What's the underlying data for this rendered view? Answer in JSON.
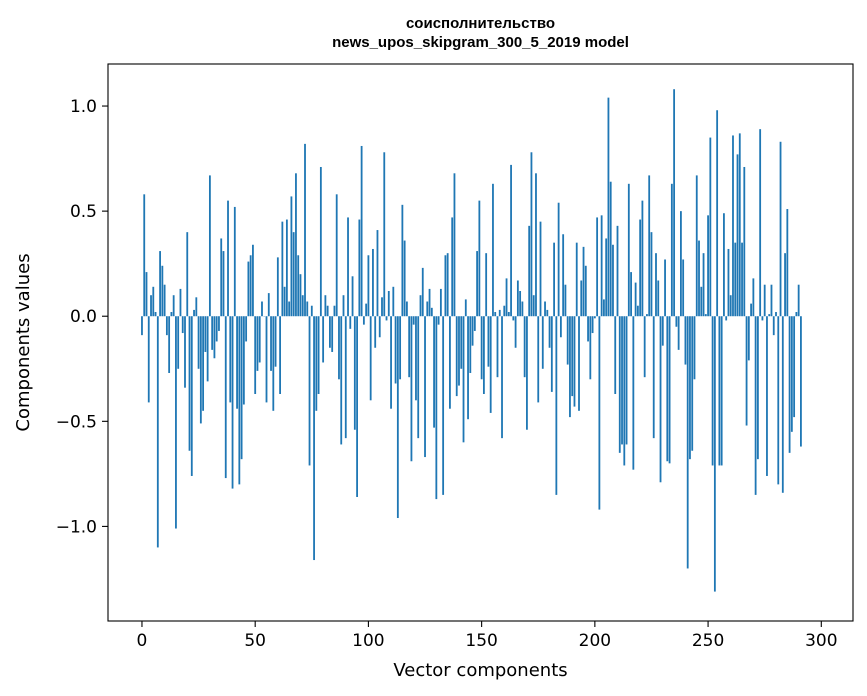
{
  "chart_data": {
    "type": "bar",
    "title": "соисполнительство\nnews_upos_skipgram_300_5_2019 model",
    "title_lines": [
      "соисполнительство",
      "news_upos_skipgram_300_5_2019 model"
    ],
    "xlabel": "Vector components",
    "ylabel": "Components values",
    "xlim": [
      -15,
      314
    ],
    "ylim": [
      -1.45,
      1.2
    ],
    "xticks": [
      0,
      50,
      100,
      150,
      200,
      250,
      300
    ],
    "xtick_labels": [
      "0",
      "50",
      "100",
      "150",
      "200",
      "250",
      "300"
    ],
    "yticks": [
      -1.0,
      -0.5,
      0.0,
      0.5,
      1.0
    ],
    "ytick_labels": [
      "−1.0",
      "−0.5",
      "0.0",
      "0.5",
      "1.0"
    ],
    "grid": false,
    "bar_color": "#1f77b4",
    "x_start": 0,
    "values": [
      -0.09,
      0.58,
      0.21,
      -0.41,
      0.1,
      0.14,
      0.02,
      -1.1,
      0.31,
      0.24,
      0.15,
      -0.09,
      -0.27,
      0.02,
      0.1,
      -1.01,
      -0.25,
      0.13,
      -0.08,
      -0.34,
      0.4,
      -0.64,
      -0.76,
      0.03,
      0.09,
      -0.25,
      -0.51,
      -0.45,
      -0.17,
      -0.31,
      0.67,
      -0.16,
      -0.2,
      -0.12,
      -0.07,
      0.37,
      0.31,
      -0.77,
      0.55,
      -0.41,
      -0.82,
      0.52,
      -0.44,
      -0.8,
      -0.68,
      -0.42,
      -0.12,
      0.26,
      0.29,
      0.34,
      -0.37,
      -0.26,
      -0.22,
      0.07,
      0.0,
      -0.41,
      0.11,
      -0.26,
      -0.45,
      -0.24,
      0.28,
      -0.37,
      0.45,
      0.14,
      0.46,
      0.07,
      0.57,
      0.4,
      0.68,
      0.29,
      0.2,
      0.1,
      0.82,
      0.07,
      -0.71,
      0.05,
      -1.16,
      -0.45,
      -0.37,
      0.71,
      -0.22,
      0.1,
      0.05,
      -0.15,
      -0.17,
      0.05,
      0.58,
      -0.3,
      -0.61,
      0.1,
      -0.58,
      0.47,
      -0.06,
      0.19,
      -0.54,
      -0.86,
      0.46,
      0.81,
      -0.04,
      0.06,
      0.29,
      -0.4,
      0.32,
      -0.15,
      0.41,
      -0.1,
      0.09,
      0.78,
      -0.02,
      0.12,
      -0.44,
      0.14,
      -0.32,
      -0.96,
      -0.3,
      0.53,
      0.36,
      0.07,
      -0.29,
      -0.69,
      -0.04,
      -0.4,
      -0.58,
      0.1,
      0.23,
      -0.67,
      0.07,
      0.13,
      0.04,
      -0.53,
      -0.87,
      -0.04,
      0.13,
      -0.85,
      0.29,
      0.3,
      -0.44,
      0.47,
      0.68,
      -0.38,
      -0.33,
      -0.25,
      -0.6,
      0.08,
      -0.49,
      -0.27,
      -0.14,
      -0.07,
      0.31,
      0.55,
      -0.3,
      -0.37,
      0.3,
      -0.24,
      -0.46,
      0.63,
      0.02,
      -0.29,
      0.03,
      -0.58,
      0.05,
      0.18,
      0.02,
      0.72,
      -0.02,
      -0.15,
      0.17,
      0.12,
      0.07,
      -0.29,
      -0.54,
      0.43,
      0.78,
      0.1,
      0.68,
      -0.41,
      0.45,
      -0.25,
      0.07,
      0.03,
      -0.15,
      -0.36,
      0.35,
      -0.85,
      0.54,
      -0.1,
      0.39,
      0.15,
      -0.23,
      -0.48,
      -0.38,
      -0.43,
      0.35,
      -0.45,
      0.17,
      0.33,
      0.24,
      -0.12,
      -0.3,
      -0.08,
      -0.01,
      0.47,
      -0.92,
      0.48,
      0.08,
      0.37,
      1.04,
      0.64,
      0.34,
      -0.37,
      0.43,
      -0.65,
      -0.61,
      -0.71,
      -0.61,
      0.63,
      0.21,
      -0.73,
      0.16,
      0.05,
      0.46,
      0.55,
      -0.29,
      0.01,
      0.67,
      0.4,
      -0.58,
      0.3,
      0.17,
      -0.79,
      -0.14,
      0.27,
      -0.69,
      -0.7,
      0.63,
      1.08,
      -0.05,
      -0.16,
      0.5,
      0.27,
      -0.23,
      -1.2,
      -0.68,
      -0.64,
      -0.3,
      0.67,
      0.36,
      0.14,
      0.3,
      0.01,
      0.48,
      0.85,
      -0.71,
      -1.31,
      0.98,
      -0.71,
      -0.71,
      0.49,
      -0.02,
      0.32,
      0.1,
      0.86,
      0.35,
      0.77,
      0.87,
      0.35,
      0.71,
      -0.52,
      -0.21,
      0.06,
      0.18,
      -0.85,
      -0.68,
      0.89,
      -0.02,
      0.15,
      -0.76,
      0.01,
      0.15,
      -0.09,
      0.02,
      -0.8,
      0.83,
      -0.84,
      0.3,
      0.51,
      -0.65,
      -0.55,
      -0.48,
      0.02,
      0.15,
      -0.62
    ]
  }
}
